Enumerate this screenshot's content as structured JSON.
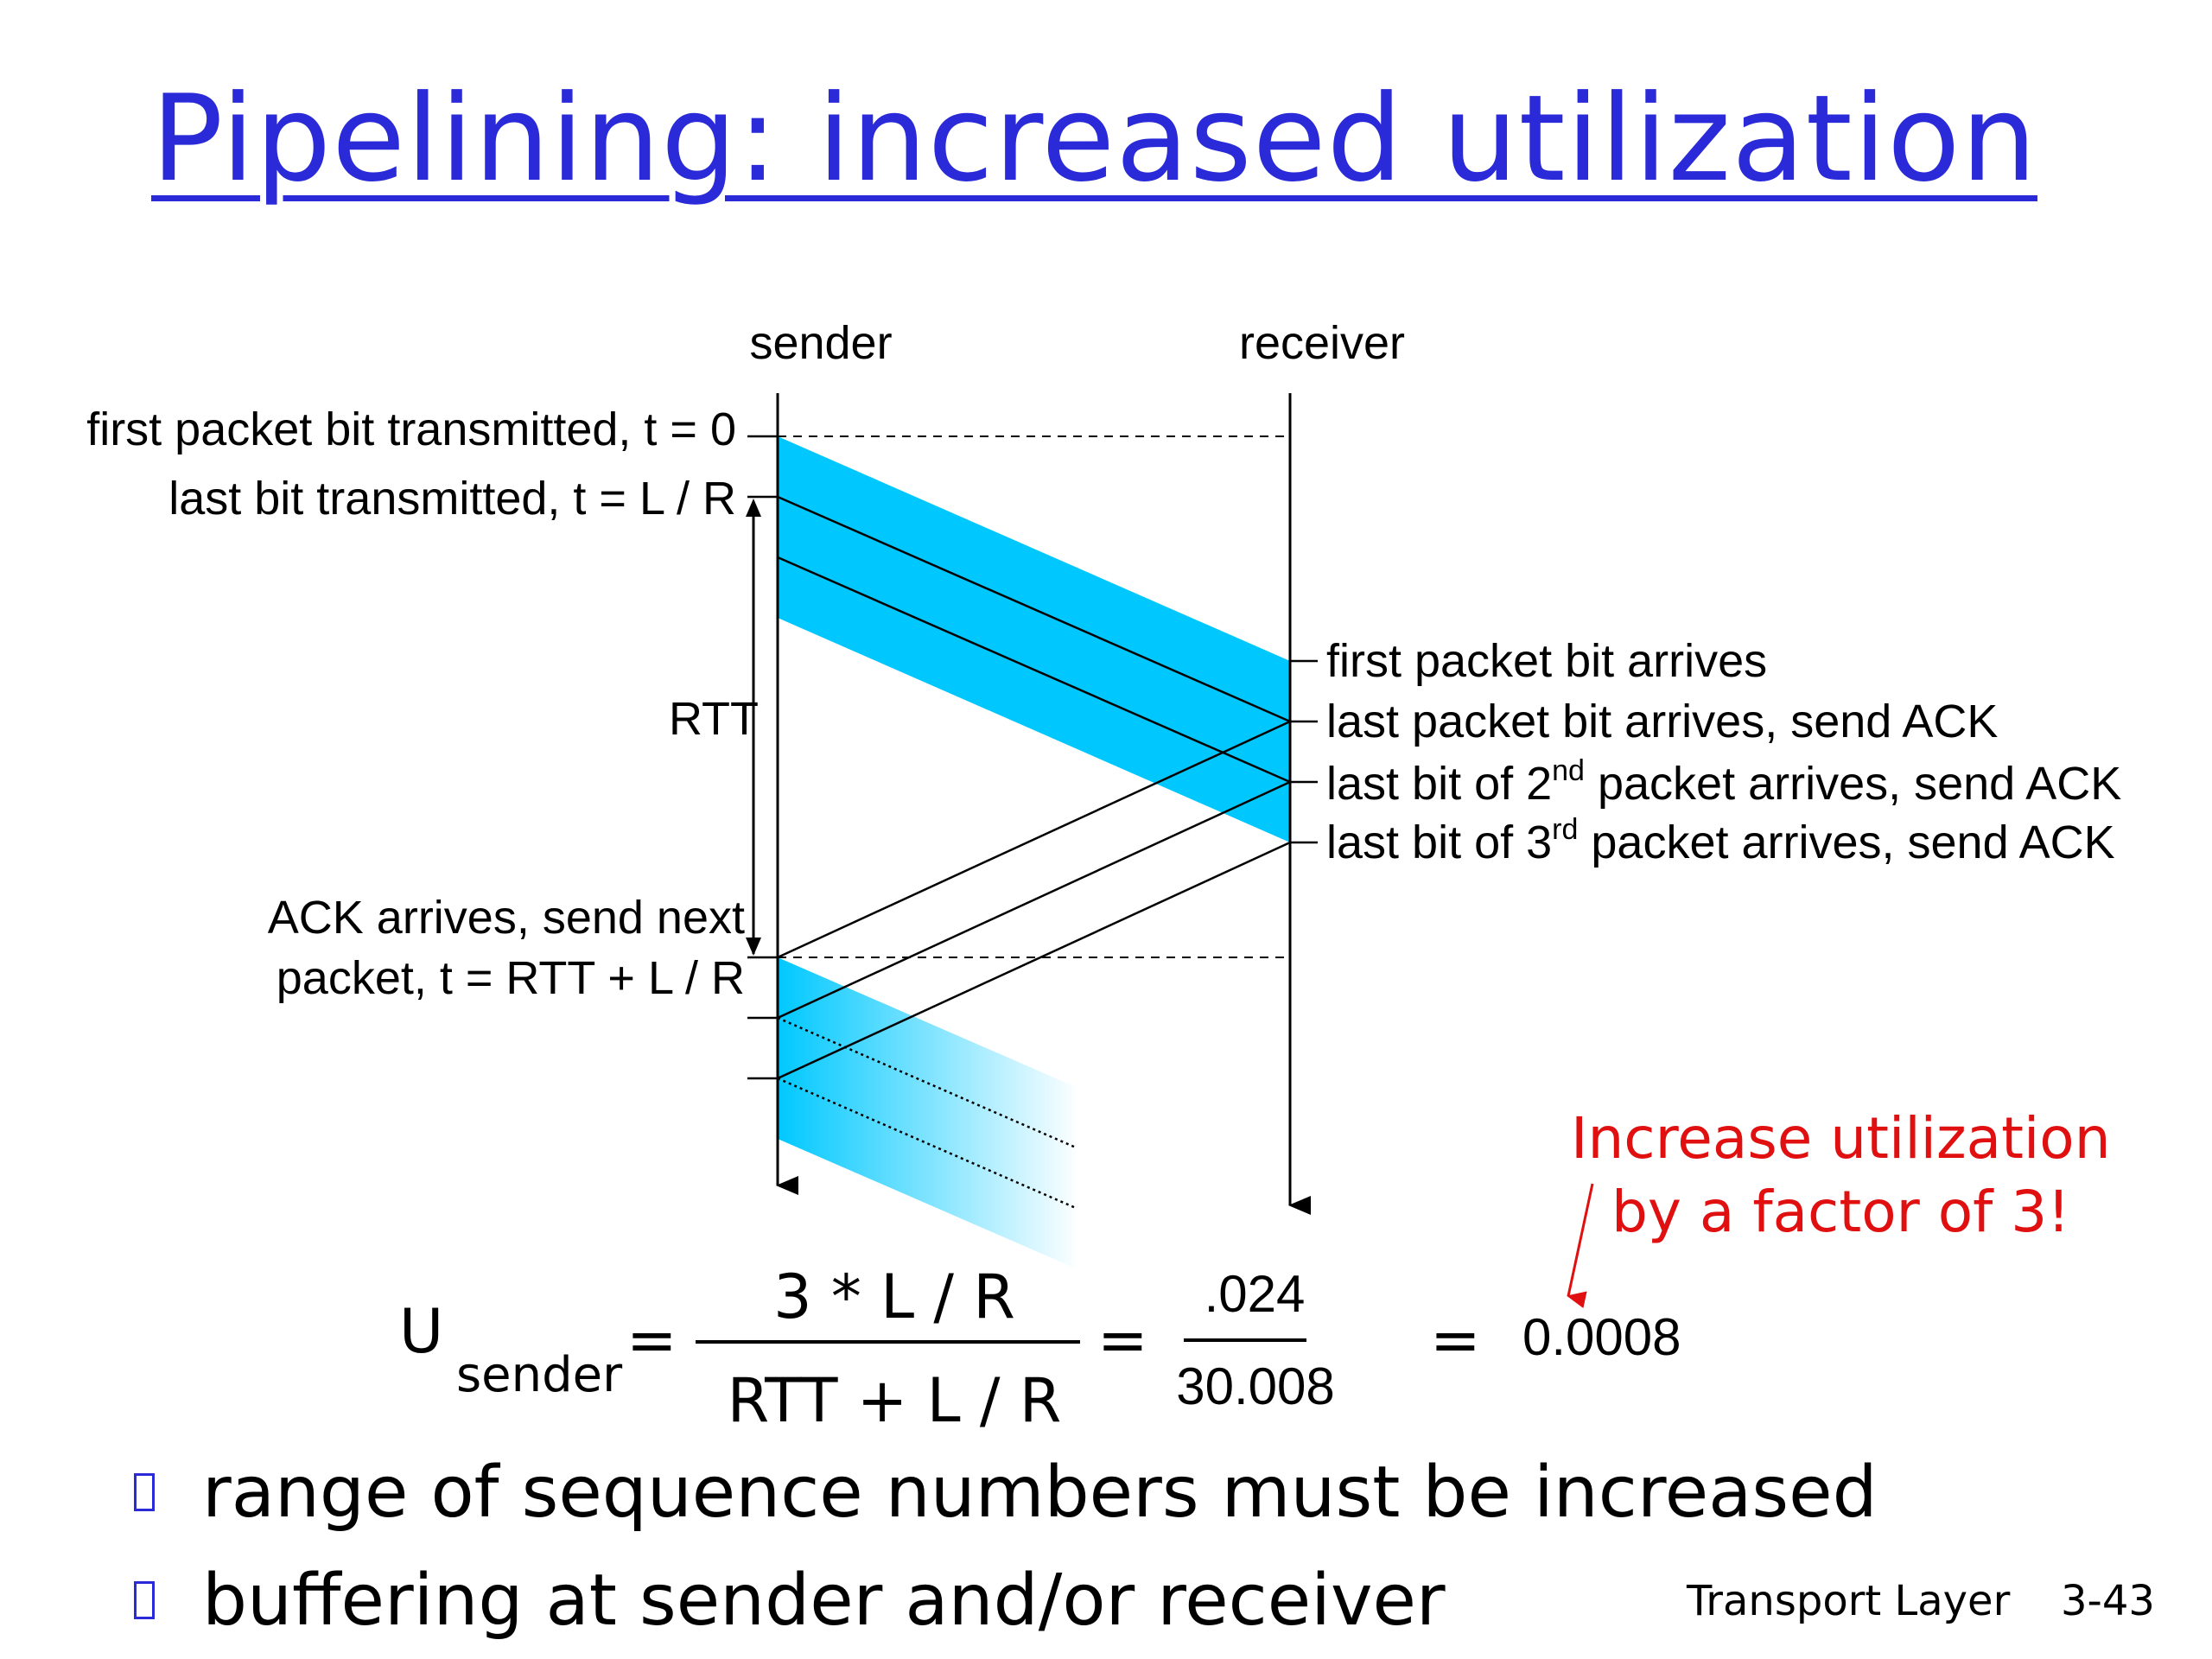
{
  "slide": {
    "title": "Pipelining: increased utilization"
  },
  "diagram": {
    "sender_label": "sender",
    "receiver_label": "receiver",
    "left_labels": {
      "t0": "first packet bit transmitted, t = 0",
      "lr": "last bit transmitted, t = L / R",
      "rtt": "RTT",
      "ack_line1": "ACK arrives, send next",
      "ack_line2": "packet, t = RTT + L / R"
    },
    "right_labels": {
      "first_arrives": "first packet bit arrives",
      "last_arrives": "last packet bit arrives, send ACK",
      "second_prefix": "last bit of 2",
      "second_sup": "nd",
      "second_suffix": " packet arrives, send ACK",
      "third_prefix": "last bit of 3",
      "third_sup": "rd",
      "third_suffix": " packet arrives, send ACK"
    },
    "packet_color": "#00c8ff"
  },
  "callout": {
    "line1": "Increase utilization",
    "line2": "by a factor of 3!",
    "color": "#e01010"
  },
  "formula": {
    "u": "U",
    "sub": "sender",
    "eq": "=",
    "numerator": "3 * L / R",
    "denominator": "RTT + L / R",
    "num2": ".024",
    "den2": "30.008",
    "result": "0.0008"
  },
  "bullets": [
    "range of sequence numbers must be increased",
    "buffering at sender and/or receiver"
  ],
  "footer": {
    "section": "Transport Layer",
    "page": "3-43"
  }
}
